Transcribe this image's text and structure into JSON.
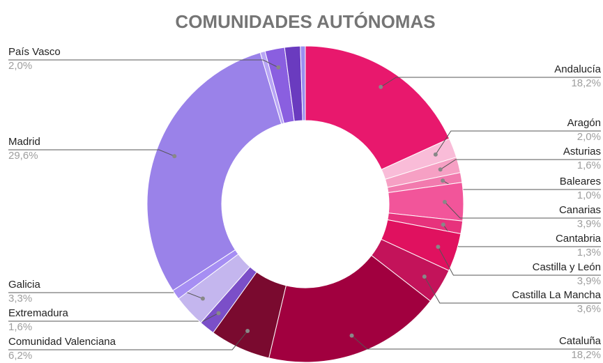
{
  "chart_data": {
    "type": "pie",
    "title": "COMUNIDADES AUTÓNOMAS",
    "donut": true,
    "categories": [
      "Andalucía",
      "Aragón",
      "Asturias",
      "Baleares",
      "Canarias",
      "Cantabria",
      "Castilla y León",
      "Castilla La Mancha",
      "Cataluña",
      "Comunidad Valenciana",
      "Extremadura",
      "Galicia",
      null,
      "Madrid",
      null,
      "País Vasco",
      null,
      null
    ],
    "values": [
      18.2,
      2.0,
      1.6,
      1.0,
      3.9,
      1.3,
      3.9,
      3.6,
      18.2,
      6.2,
      1.6,
      3.3,
      1.0,
      29.6,
      0.5,
      2.0,
      1.6,
      0.5
    ],
    "value_labels": [
      "18,2%",
      "2,0%",
      "1,6%",
      "1,0%",
      "3,9%",
      "1,3%",
      "3,9%",
      "3,6%",
      "18,2%",
      "6,2%",
      "1,6%",
      "3,3%",
      null,
      "29,6%",
      null,
      "2,0%",
      null,
      null
    ],
    "colors": [
      "#e8186d",
      "#f9bcd8",
      "#f6a0c4",
      "#f27aae",
      "#f2559a",
      "#e7327c",
      "#e0115f",
      "#c3135a",
      "#a1003f",
      "#7a0a2f",
      "#7b4fc8",
      "#c4b6ee",
      "#a68ef3",
      "#9a82e9",
      "#b8a5f5",
      "#8a5fe0",
      "#6a3bbf",
      "#9b8ff0"
    ]
  }
}
